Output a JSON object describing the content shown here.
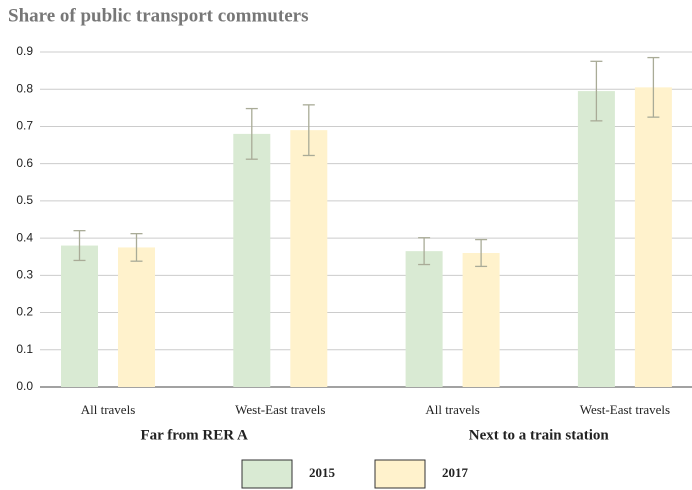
{
  "chart_data": {
    "type": "bar",
    "title": "Share of public transport commuters",
    "categories": [
      "All travels",
      "West-East travels",
      "All travels",
      "West-East travels"
    ],
    "groups": [
      "Far from RER A",
      "Next to a train station"
    ],
    "series": [
      {
        "name": "2015",
        "color": "#d9ead3",
        "values": [
          0.38,
          0.68,
          0.365,
          0.795
        ],
        "errors": [
          0.04,
          0.068,
          0.036,
          0.08
        ]
      },
      {
        "name": "2017",
        "color": "#fff2cc",
        "values": [
          0.375,
          0.69,
          0.36,
          0.805
        ],
        "errors": [
          0.037,
          0.068,
          0.036,
          0.08
        ]
      }
    ],
    "ylim": [
      0,
      0.9
    ],
    "yticks": [
      {
        "value": 0,
        "label": "0.0"
      },
      0.1,
      0.2,
      0.3,
      0.4,
      0.5,
      0.6,
      0.7,
      0.8,
      0.9
    ],
    "grid": true
  }
}
